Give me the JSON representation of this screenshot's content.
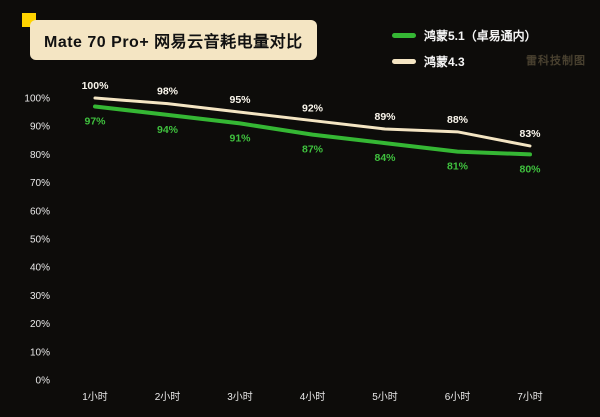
{
  "header": {
    "title": "Mate 70 Pro+ 网易云音耗电量对比",
    "watermark": "雷科技制图"
  },
  "legend": [
    {
      "label": "鸿蒙5.1（卓易通内）",
      "color": "#35b734"
    },
    {
      "label": "鸿蒙4.3",
      "color": "#f4e5c3"
    }
  ],
  "chart_data": {
    "type": "line",
    "title": "Mate 70 Pro+ 网易云音耗电量对比",
    "categories": [
      "1小时",
      "2小时",
      "3小时",
      "4小时",
      "5小时",
      "6小时",
      "7小时"
    ],
    "series": [
      {
        "name": "鸿蒙5.1（卓易通内）",
        "values": [
          97,
          94,
          91,
          87,
          84,
          81,
          80
        ],
        "color": "#35b734",
        "label_color": "#3fc03e",
        "label_position": "below",
        "stroke_width": 4
      },
      {
        "name": "鸿蒙4.3",
        "values": [
          100,
          98,
          95,
          92,
          89,
          88,
          83
        ],
        "color": "#f4e5c3",
        "label_color": "#faf6ec",
        "label_position": "above",
        "stroke_width": 3
      }
    ],
    "xlabel": "",
    "ylabel": "",
    "ylim": [
      0,
      100
    ],
    "yticks": [
      "100%",
      "90%",
      "80%",
      "70%",
      "60%",
      "50%",
      "40%",
      "30%",
      "20%",
      "10%",
      "0%"
    ],
    "unit": "%",
    "grid": false,
    "legend_position": "top-right"
  },
  "colors": {
    "background": "#0d0c0a",
    "badge_bg": "#f4e5c3",
    "badge_text": "#111111",
    "accent_square": "#ffd400",
    "axis_text": "#e9e9e9"
  }
}
